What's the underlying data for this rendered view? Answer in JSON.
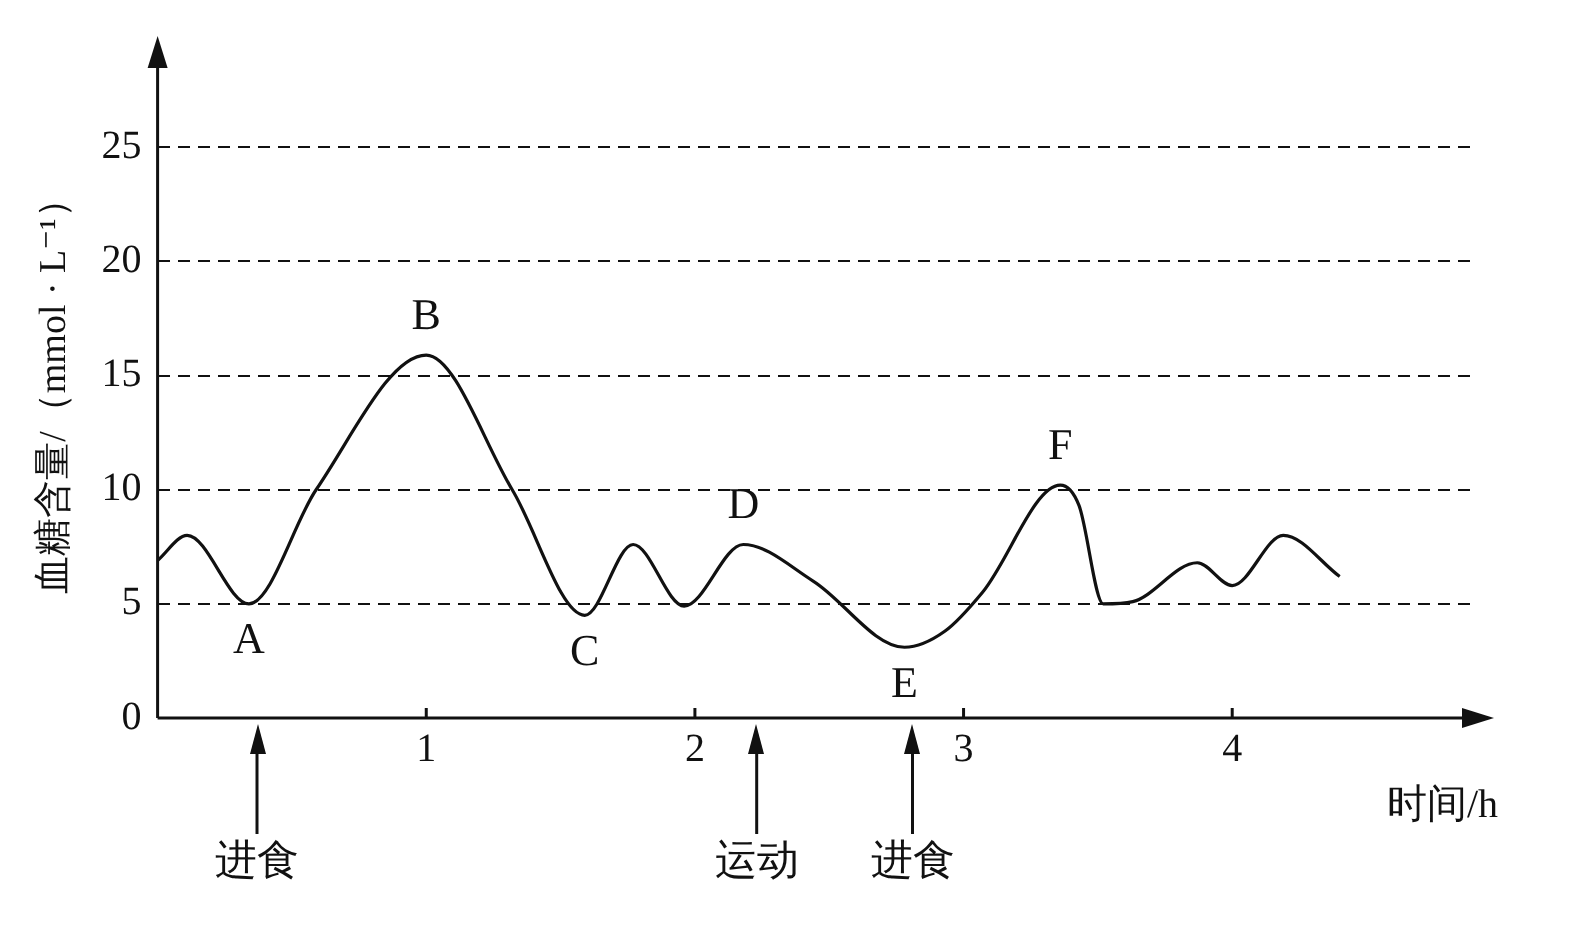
{
  "chart_data": {
    "type": "line",
    "xlabel": "时间/h",
    "ylabel": "血糖含量/（mmol · L⁻¹）",
    "x": [
      0,
      0.11,
      0.34,
      0.59,
      1.0,
      1.32,
      1.59,
      1.77,
      1.96,
      2.18,
      2.44,
      2.78,
      2.93,
      3.07,
      3.36,
      3.43,
      3.52,
      3.63,
      3.87,
      4.0,
      4.19,
      4.4
    ],
    "series": [
      {
        "color": "#111111",
        "values": [
          6.9,
          8.0,
          5.0,
          10.0,
          15.9,
          10.0,
          4.5,
          7.6,
          4.9,
          7.6,
          6.0,
          3.1,
          3.8,
          5.5,
          10.2,
          9.3,
          5.0,
          5.1,
          6.8,
          5.8,
          8.0,
          6.2
        ]
      }
    ],
    "xlim": [
      0,
      4.9
    ],
    "ylim": [
      0,
      29
    ],
    "xticks": [
      1,
      2,
      3,
      4
    ],
    "yticks": [
      0,
      5,
      10,
      15,
      20,
      25
    ],
    "grid": "y",
    "legend": false,
    "marker": "none",
    "line_style": "solid",
    "annotations": [
      {
        "text": "A",
        "x": 0.34,
        "y": 5.0
      },
      {
        "text": "B",
        "x": 1.0,
        "y": 15.9
      },
      {
        "text": "C",
        "x": 1.59,
        "y": 4.5
      },
      {
        "text": "D",
        "x": 2.18,
        "y": 7.6
      },
      {
        "text": "E",
        "x": 2.78,
        "y": 3.1
      },
      {
        "text": "F",
        "x": 3.36,
        "y": 10.2
      }
    ],
    "ref_lines": [
      {
        "axis": "x",
        "value": 0.37,
        "label": "进食"
      },
      {
        "axis": "x",
        "value": 2.23,
        "label": "运动"
      },
      {
        "axis": "x",
        "value": 2.81,
        "label": "进食"
      }
    ]
  }
}
